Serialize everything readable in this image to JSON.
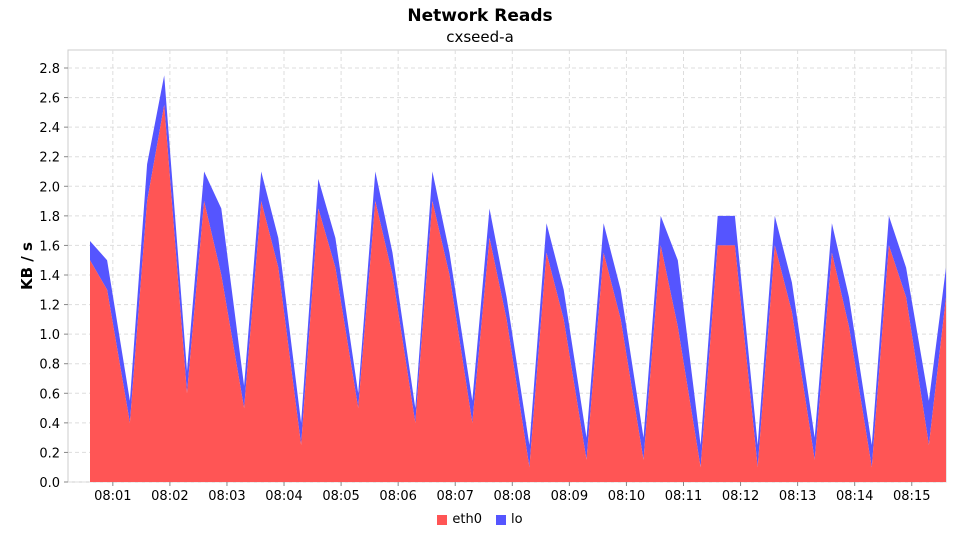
{
  "chart_data": {
    "type": "area",
    "title": "Network Reads",
    "subtitle": "cxseed-a",
    "ylabel": "KB / s",
    "xlabel": "",
    "ylim": [
      0,
      2.8
    ],
    "yticks": [
      "0.0",
      "0.2",
      "0.4",
      "0.6",
      "0.8",
      "1.0",
      "1.2",
      "1.4",
      "1.6",
      "1.8",
      "2.0",
      "2.2",
      "2.4",
      "2.6",
      "2.8"
    ],
    "xticks": [
      "08:01",
      "08:02",
      "08:03",
      "08:04",
      "08:05",
      "08:06",
      "08:07",
      "08:08",
      "08:09",
      "08:10",
      "08:11",
      "08:12",
      "08:13",
      "08:14",
      "08:15"
    ],
    "x_range_minutes": [
      "08:00.6",
      "08:15.6"
    ],
    "grid": true,
    "legend_position": "bottom",
    "stacked": true,
    "x": [
      "08:00.6",
      "08:00.9",
      "08:01.3",
      "08:01.6",
      "08:01.9",
      "08:02.3",
      "08:02.6",
      "08:02.9",
      "08:03.3",
      "08:03.6",
      "08:03.9",
      "08:04.3",
      "08:04.6",
      "08:04.9",
      "08:05.3",
      "08:05.6",
      "08:05.9",
      "08:06.3",
      "08:06.6",
      "08:06.9",
      "08:07.3",
      "08:07.6",
      "08:07.9",
      "08:08.3",
      "08:08.6",
      "08:08.9",
      "08:09.3",
      "08:09.6",
      "08:09.9",
      "08:10.3",
      "08:10.6",
      "08:10.9",
      "08:11.3",
      "08:11.6",
      "08:11.9",
      "08:12.3",
      "08:12.6",
      "08:12.9",
      "08:13.3",
      "08:13.6",
      "08:13.9",
      "08:14.3",
      "08:14.6",
      "08:14.9",
      "08:15.3",
      "08:15.6"
    ],
    "series": [
      {
        "name": "eth0",
        "color": "#ff5555",
        "values": [
          1.5,
          1.3,
          0.4,
          1.9,
          2.55,
          0.6,
          1.9,
          1.4,
          0.5,
          1.9,
          1.45,
          0.25,
          1.85,
          1.45,
          0.5,
          1.9,
          1.4,
          0.4,
          1.9,
          1.4,
          0.4,
          1.65,
          1.1,
          0.1,
          1.55,
          1.1,
          0.15,
          1.55,
          1.1,
          0.15,
          1.6,
          1.05,
          0.1,
          1.6,
          1.6,
          0.1,
          1.6,
          1.15,
          0.15,
          1.55,
          1.05,
          0.1,
          1.6,
          1.25,
          0.25,
          1.25
        ]
      },
      {
        "name": "lo",
        "color": "#5555ff",
        "values": [
          0.13,
          0.2,
          0.15,
          0.25,
          0.2,
          0.15,
          0.2,
          0.45,
          0.15,
          0.2,
          0.2,
          0.15,
          0.2,
          0.2,
          0.1,
          0.2,
          0.15,
          0.1,
          0.2,
          0.15,
          0.15,
          0.2,
          0.15,
          0.15,
          0.2,
          0.2,
          0.15,
          0.2,
          0.2,
          0.15,
          0.2,
          0.45,
          0.15,
          0.2,
          0.2,
          0.15,
          0.2,
          0.2,
          0.15,
          0.2,
          0.2,
          0.15,
          0.2,
          0.2,
          0.3,
          0.2
        ]
      }
    ]
  }
}
